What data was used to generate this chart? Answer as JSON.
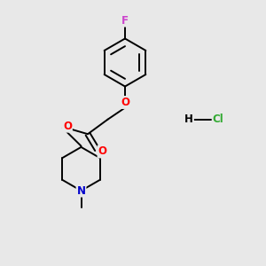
{
  "background_color": "#e8e8e8",
  "bond_color": "#000000",
  "atom_colors": {
    "O": "#ff0000",
    "N": "#0000cc",
    "F": "#cc44cc",
    "C": "#000000",
    "Cl": "#33aa33",
    "H": "#000000"
  },
  "figsize": [
    3.0,
    3.0
  ],
  "dpi": 100,
  "lw": 1.4,
  "fs": 8.5
}
